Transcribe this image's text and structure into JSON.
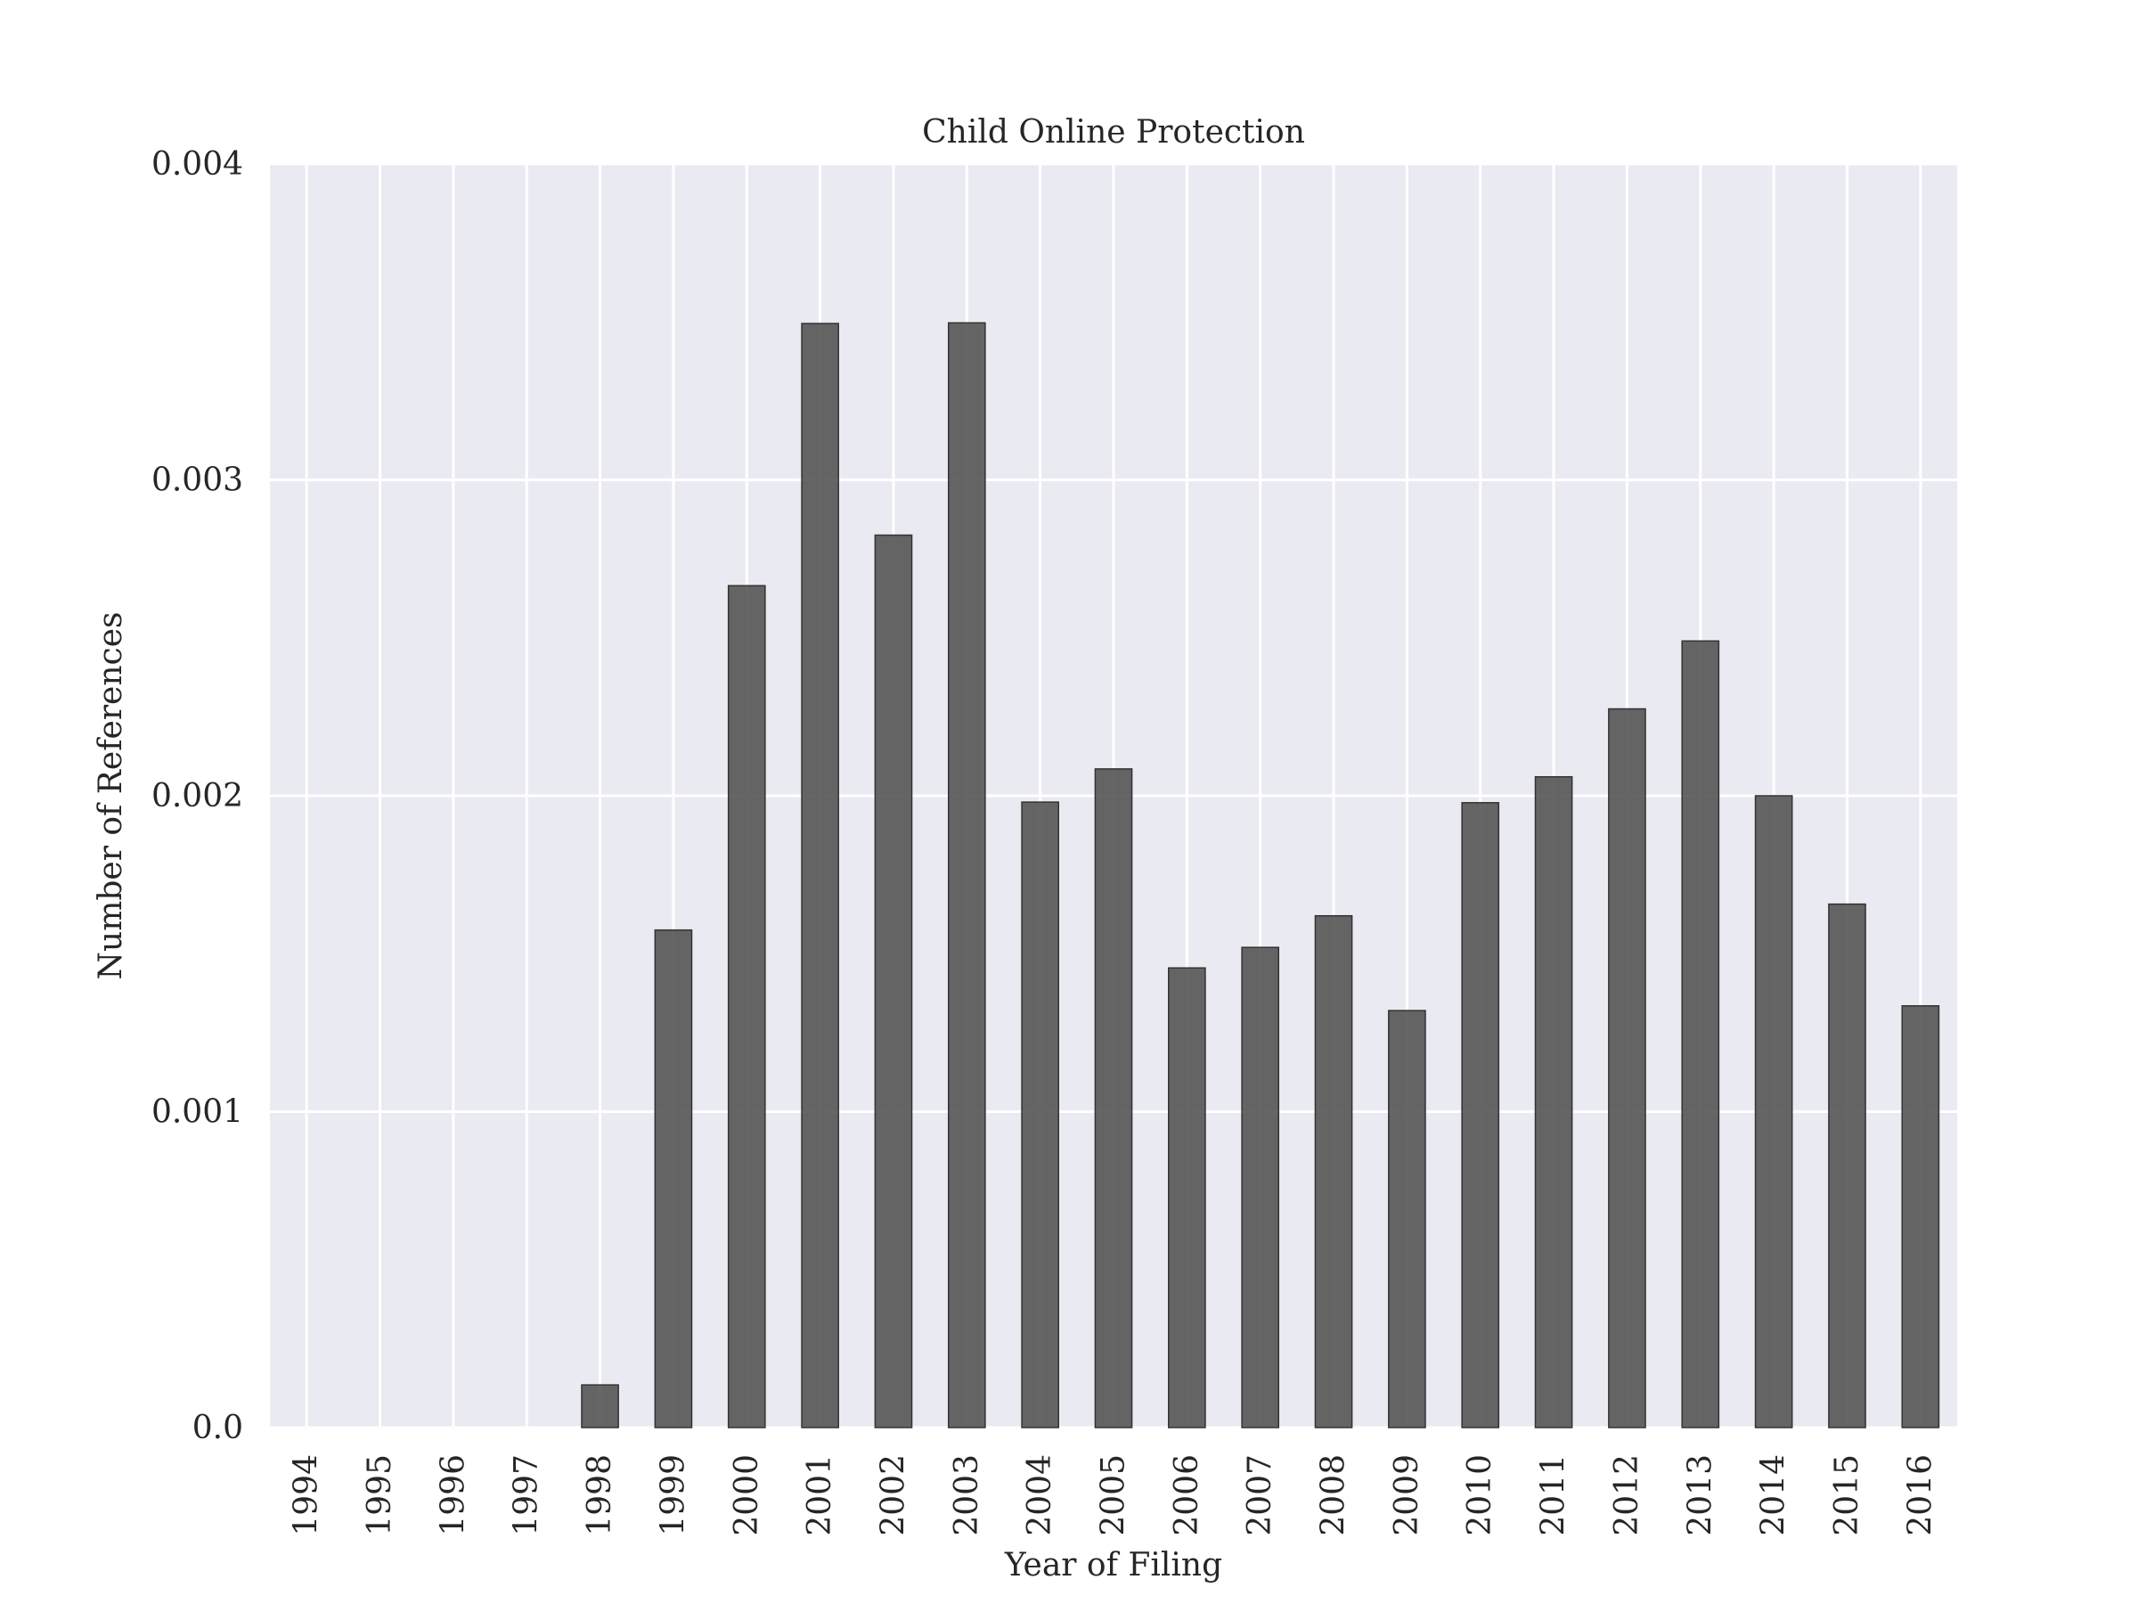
{
  "colors": {
    "plot_background": "#eaeaf2",
    "grid": "#ffffff",
    "bar_fill": "#555555",
    "bar_edge": "#333333",
    "text": "#262626"
  },
  "chart_data": {
    "type": "bar",
    "title": "Child Online Protection",
    "xlabel": "Year of Filing",
    "ylabel": "Number of References",
    "categories": [
      "1994",
      "1995",
      "1996",
      "1997",
      "1998",
      "1999",
      "2000",
      "2001",
      "2002",
      "2003",
      "2004",
      "2005",
      "2006",
      "2007",
      "2008",
      "2009",
      "2010",
      "2011",
      "2012",
      "2013",
      "2014",
      "2015",
      "2016"
    ],
    "values": [
      0.0,
      0.0,
      0.0,
      0.0,
      0.000135,
      0.001575,
      0.002665,
      0.003495,
      0.002825,
      0.003497,
      0.00198,
      0.002085,
      0.001455,
      0.00152,
      0.00162,
      0.00132,
      0.001978,
      0.00206,
      0.002275,
      0.00249,
      0.002,
      0.001657,
      0.001335
    ],
    "ylim": [
      0,
      0.004
    ],
    "yticks": [
      0.0,
      0.001,
      0.002,
      0.003,
      0.004
    ],
    "ytick_labels": [
      "0.0",
      "0.001",
      "0.002",
      "0.003",
      "0.004"
    ],
    "grid": true,
    "legend": false
  }
}
